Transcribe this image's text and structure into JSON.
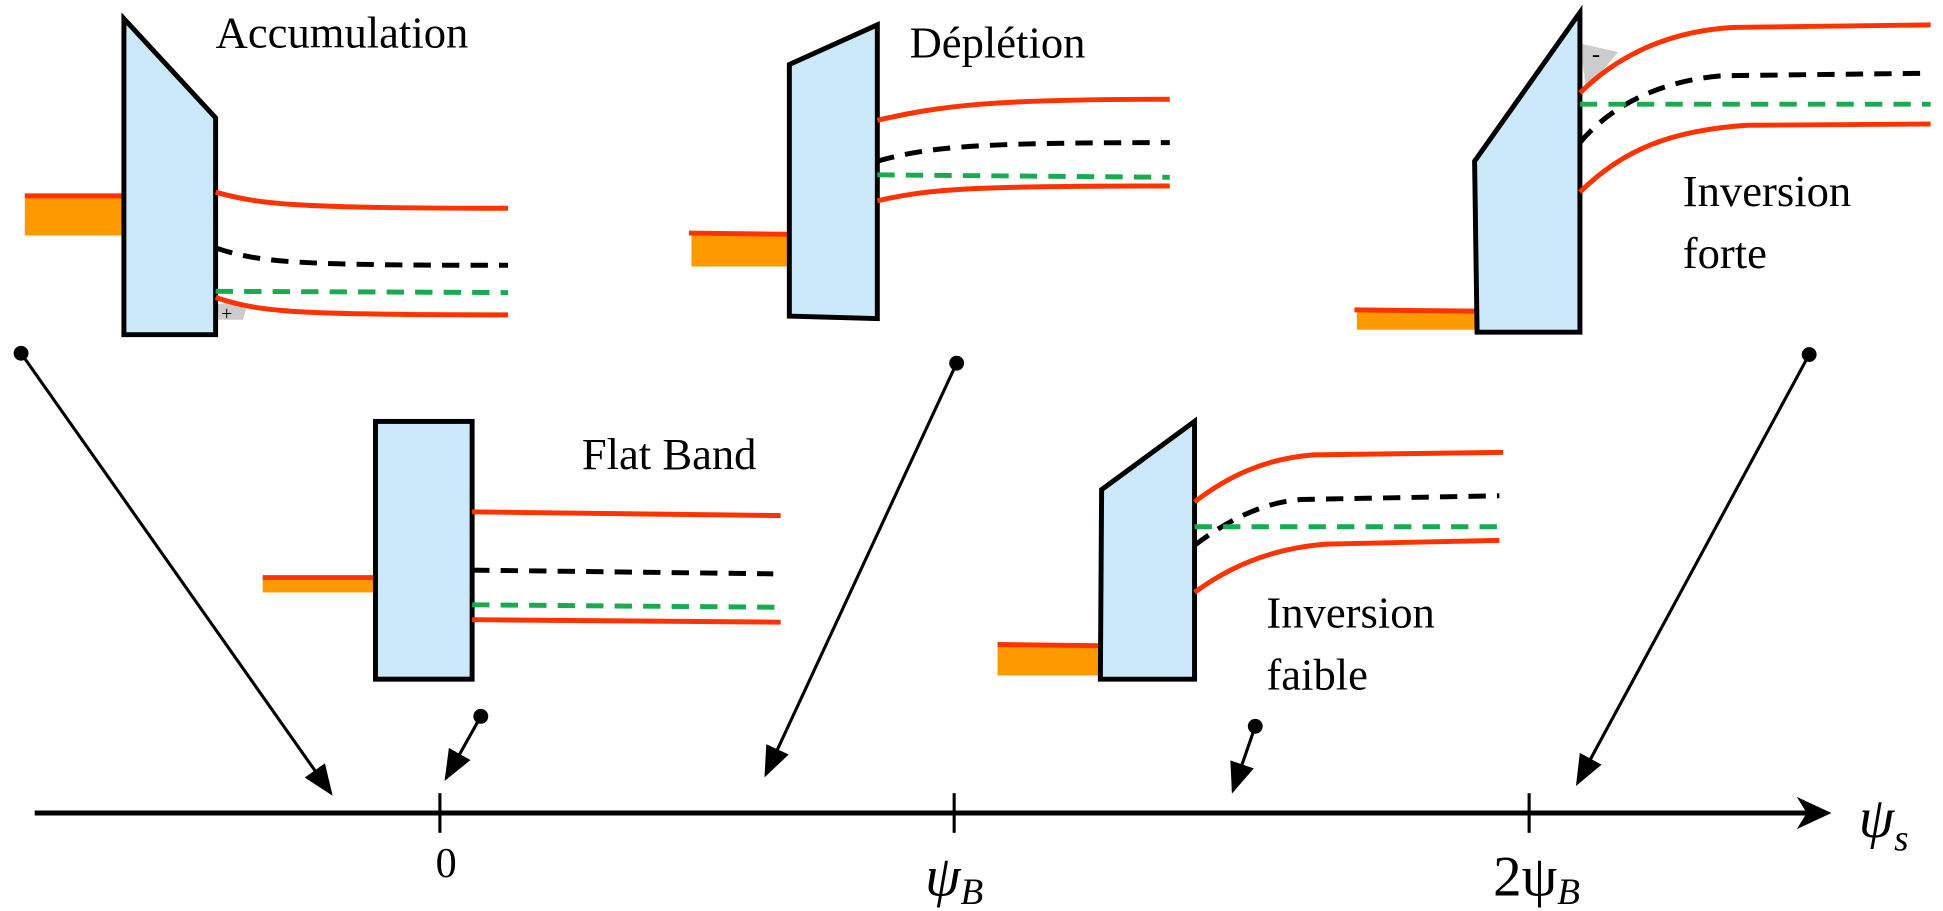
{
  "labels": {
    "accumulation": "Accumulation",
    "depletion": "Déplétion",
    "strong_inversion": [
      "Inversion",
      "forte"
    ],
    "flat_band": "Flat Band",
    "weak_inversion": [
      "Inversion",
      "faible"
    ]
  },
  "charges": {
    "accumulation": "+",
    "strong_inversion": "-"
  },
  "axis": {
    "ticks": [
      "0",
      {
        "main": "ψ",
        "sub": "B"
      },
      {
        "main": "2ψ",
        "sub": "B"
      }
    ],
    "label": {
      "main": "ψ",
      "sub": "s"
    }
  }
}
